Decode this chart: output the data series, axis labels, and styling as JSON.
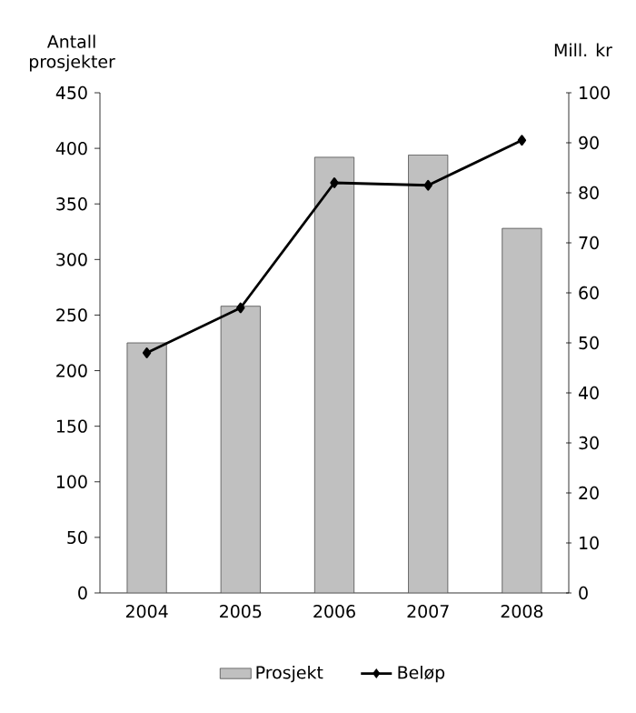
{
  "chart_data": {
    "type": "bar",
    "categories": [
      "2004",
      "2005",
      "2006",
      "2007",
      "2008"
    ],
    "ylabel": "Antall prosjekter",
    "y2label": "Mill. kr",
    "ylim": [
      0,
      450
    ],
    "yticks": [
      0,
      50,
      100,
      150,
      200,
      250,
      300,
      350,
      400,
      450
    ],
    "y2lim": [
      0,
      100
    ],
    "y2ticks": [
      0,
      10,
      20,
      30,
      40,
      50,
      60,
      70,
      80,
      90,
      100
    ],
    "legend": "bottom",
    "series": [
      {
        "name": "Prosjekt",
        "color": "#c0c0c0",
        "values": [
          225,
          258,
          392,
          394,
          328
        ]
      },
      {
        "name": "Beløp",
        "type": "line",
        "axis": "y2",
        "marker": "diamond",
        "color": "#000000",
        "values": [
          48,
          57,
          82,
          81.5,
          90.5
        ]
      }
    ]
  }
}
